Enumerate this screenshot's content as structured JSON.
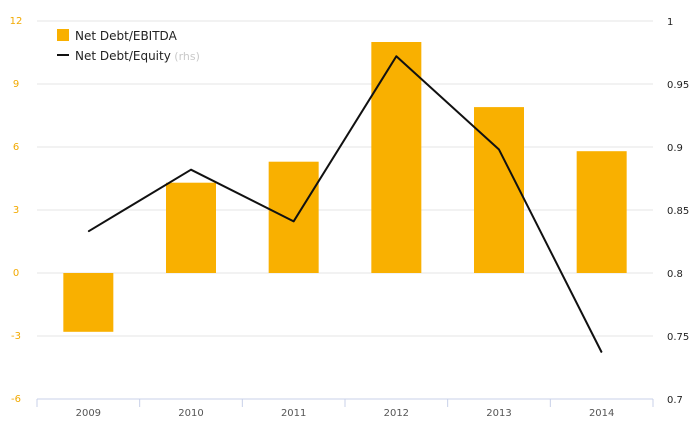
{
  "chart_data": {
    "type": "bar",
    "categories": [
      "2009",
      "2010",
      "2011",
      "2012",
      "2013",
      "2014"
    ],
    "series": [
      {
        "name": "Net Debt/EBITDA",
        "type": "bar",
        "axis": "left",
        "values": [
          -2.8,
          4.3,
          5.3,
          11.0,
          7.9,
          5.8
        ],
        "color": "#f9b000"
      },
      {
        "name": "Net Debt/Equity",
        "type": "line",
        "axis": "right",
        "values": [
          0.833,
          0.882,
          0.841,
          0.972,
          0.898,
          0.737
        ],
        "color": "#111111"
      }
    ],
    "legend": {
      "items": [
        {
          "label": "Net Debt/EBITDA",
          "suffix": ""
        },
        {
          "label": "Net Debt/Equity",
          "suffix": " (rhs)"
        }
      ],
      "position": "top-left"
    },
    "y_left": {
      "ticks": [
        "12",
        "9",
        "6",
        "3",
        "0",
        "-3",
        "-6"
      ],
      "values": [
        12,
        9,
        6,
        3,
        0,
        -3,
        -6
      ],
      "ylim": [
        -6,
        12
      ]
    },
    "y_right": {
      "ticks": [
        "1",
        "0.95",
        "0.9",
        "0.85",
        "0.8",
        "0.75",
        "0.7"
      ],
      "values": [
        1,
        0.95,
        0.9,
        0.85,
        0.8,
        0.75,
        0.7
      ],
      "ylim": [
        0.7,
        1
      ]
    },
    "grid": true,
    "colors": {
      "left_axis": "#f2a900",
      "grid": "#e6e6e6",
      "axis_line": "#c8d0e8"
    }
  }
}
